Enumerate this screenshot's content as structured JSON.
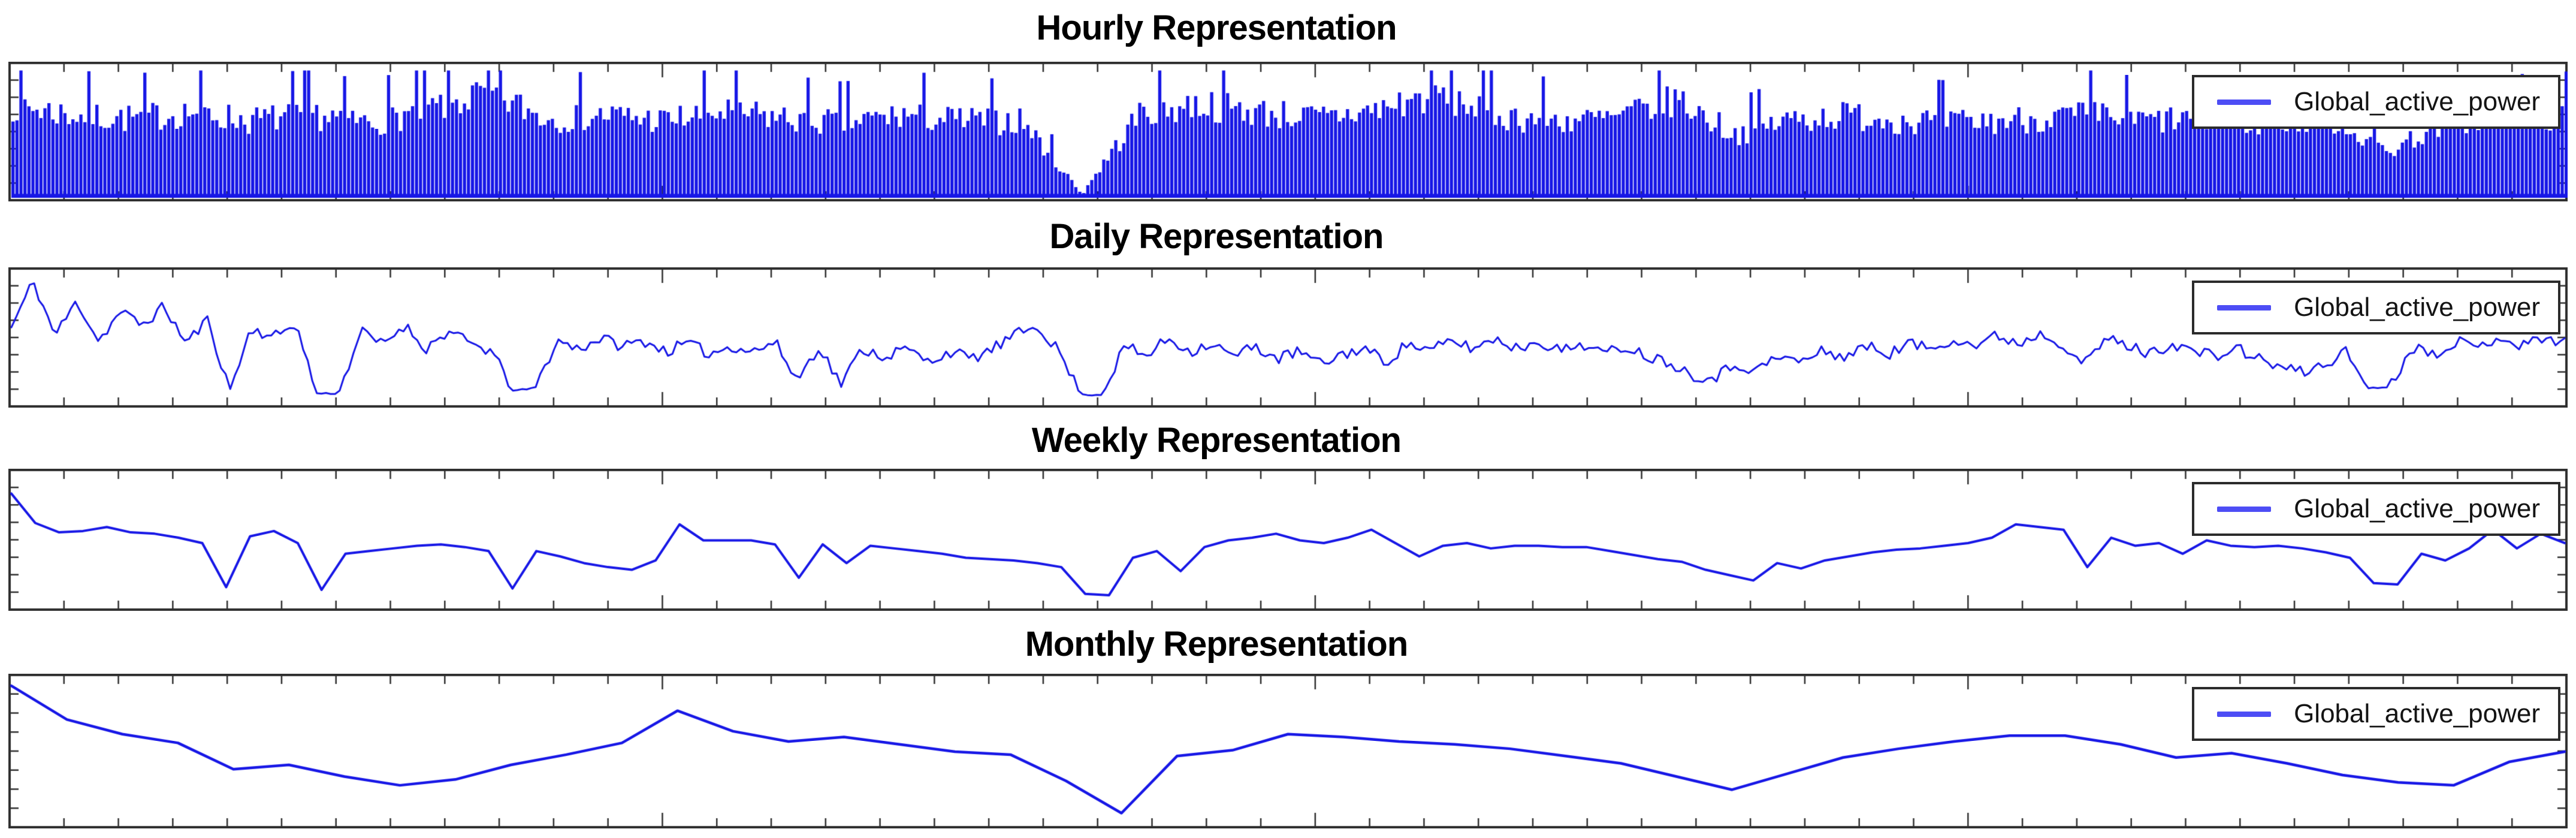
{
  "figure": {
    "background": "#ffffff",
    "titles": [
      "Hourly Representation",
      "Daily Representation",
      "Weekly Representation",
      "Monthly Representation"
    ]
  },
  "style": {
    "line_color": "#1717e6",
    "legend_sample_color": "#4d4df5",
    "spine_color": "#2f2f2f",
    "tick_color": "#2f2f2f",
    "title_color": "#000000",
    "legend_text_color": "#141414",
    "legend_border_color": "#2b2b2b"
  },
  "legend": {
    "label": "Global_active_power"
  },
  "chart_data": [
    {
      "id": "hourly",
      "type": "line",
      "title": "Hourly Representation",
      "series_name": "Global_active_power",
      "render": "spike-fill",
      "legend_position": "upper right",
      "grid": false,
      "x_tick_count": 47,
      "y_tick_count": 8,
      "tick_labels_visible": false,
      "columns": 640,
      "noise_seed": 7,
      "baseline": 0.03,
      "envelope_top": [
        0.85,
        0.75,
        0.72,
        0.78,
        0.7,
        0.76,
        0.68,
        0.8,
        0.95,
        0.72,
        0.75,
        0.7,
        0.78,
        0.72,
        0.68,
        0.75,
        0.7,
        0.7,
        0.04,
        0.78,
        0.85,
        0.78,
        0.72,
        0.8,
        0.95,
        0.75,
        0.7,
        0.72,
        0.9,
        0.58,
        0.72,
        0.75,
        0.7,
        0.68,
        0.72,
        0.75,
        0.7,
        0.72,
        0.68,
        0.74,
        0.42,
        0.7,
        0.72,
        0.74
      ]
    },
    {
      "id": "daily",
      "type": "line",
      "title": "Daily Representation",
      "series_name": "Global_active_power",
      "render": "noisy-line",
      "legend_position": "upper right",
      "grid": false,
      "x_tick_count": 47,
      "y_tick_count": 8,
      "tick_labels_visible": false,
      "noise_seed": 11,
      "noise_amp": 0.045,
      "line_width": 3,
      "values": [
        0.58,
        0.93,
        0.52,
        0.78,
        0.48,
        0.7,
        0.6,
        0.74,
        0.46,
        0.64,
        0.1,
        0.58,
        0.5,
        0.62,
        0.08,
        0.08,
        0.55,
        0.45,
        0.6,
        0.42,
        0.55,
        0.46,
        0.4,
        0.1,
        0.12,
        0.48,
        0.42,
        0.5,
        0.44,
        0.48,
        0.4,
        0.46,
        0.38,
        0.44,
        0.4,
        0.47,
        0.18,
        0.44,
        0.15,
        0.42,
        0.36,
        0.42,
        0.32,
        0.4,
        0.34,
        0.42,
        0.52,
        0.6,
        0.4,
        0.07,
        0.07,
        0.44,
        0.36,
        0.5,
        0.4,
        0.46,
        0.36,
        0.44,
        0.34,
        0.4,
        0.3,
        0.38,
        0.42,
        0.32,
        0.46,
        0.4,
        0.48,
        0.42,
        0.5,
        0.42,
        0.48,
        0.4,
        0.46,
        0.38,
        0.44,
        0.36,
        0.32,
        0.22,
        0.2,
        0.3,
        0.26,
        0.36,
        0.32,
        0.4,
        0.36,
        0.44,
        0.38,
        0.46,
        0.42,
        0.5,
        0.44,
        0.52,
        0.46,
        0.54,
        0.46,
        0.3,
        0.5,
        0.44,
        0.38,
        0.46,
        0.4,
        0.36,
        0.42,
        0.34,
        0.28,
        0.24,
        0.3,
        0.4,
        0.12,
        0.13,
        0.44,
        0.38,
        0.48,
        0.42,
        0.52,
        0.44,
        0.5,
        0.48
      ]
    },
    {
      "id": "weekly",
      "type": "line",
      "title": "Weekly Representation",
      "series_name": "Global_active_power",
      "render": "line",
      "legend_position": "upper right",
      "grid": false,
      "x_tick_count": 47,
      "y_tick_count": 8,
      "tick_labels_visible": false,
      "line_width": 4,
      "values": [
        0.85,
        0.63,
        0.56,
        0.57,
        0.6,
        0.56,
        0.55,
        0.52,
        0.48,
        0.15,
        0.53,
        0.57,
        0.48,
        0.13,
        0.4,
        0.42,
        0.44,
        0.46,
        0.47,
        0.45,
        0.42,
        0.14,
        0.42,
        0.38,
        0.33,
        0.3,
        0.28,
        0.35,
        0.62,
        0.5,
        0.5,
        0.5,
        0.47,
        0.22,
        0.47,
        0.33,
        0.46,
        0.44,
        0.42,
        0.4,
        0.37,
        0.36,
        0.35,
        0.33,
        0.3,
        0.1,
        0.09,
        0.37,
        0.42,
        0.27,
        0.45,
        0.5,
        0.52,
        0.55,
        0.5,
        0.48,
        0.52,
        0.58,
        0.48,
        0.38,
        0.46,
        0.48,
        0.44,
        0.46,
        0.46,
        0.45,
        0.45,
        0.42,
        0.39,
        0.36,
        0.34,
        0.28,
        0.24,
        0.2,
        0.33,
        0.29,
        0.35,
        0.38,
        0.41,
        0.43,
        0.44,
        0.46,
        0.48,
        0.52,
        0.62,
        0.6,
        0.58,
        0.3,
        0.52,
        0.46,
        0.48,
        0.4,
        0.5,
        0.46,
        0.45,
        0.46,
        0.44,
        0.41,
        0.37,
        0.18,
        0.17,
        0.4,
        0.35,
        0.44,
        0.58,
        0.44,
        0.55,
        0.48
      ]
    },
    {
      "id": "monthly",
      "type": "line",
      "title": "Monthly Representation",
      "series_name": "Global_active_power",
      "render": "line",
      "legend_position": "upper right",
      "grid": false,
      "x_tick_count": 47,
      "y_tick_count": 8,
      "tick_labels_visible": false,
      "line_width": 4.5,
      "values": [
        0.95,
        0.72,
        0.62,
        0.56,
        0.38,
        0.41,
        0.33,
        0.27,
        0.31,
        0.41,
        0.48,
        0.56,
        0.78,
        0.64,
        0.57,
        0.6,
        0.55,
        0.5,
        0.48,
        0.3,
        0.08,
        0.47,
        0.51,
        0.62,
        0.6,
        0.57,
        0.55,
        0.52,
        0.47,
        0.42,
        0.33,
        0.24,
        0.35,
        0.46,
        0.52,
        0.57,
        0.61,
        0.61,
        0.55,
        0.46,
        0.49,
        0.42,
        0.34,
        0.29,
        0.27,
        0.43,
        0.5
      ]
    }
  ]
}
